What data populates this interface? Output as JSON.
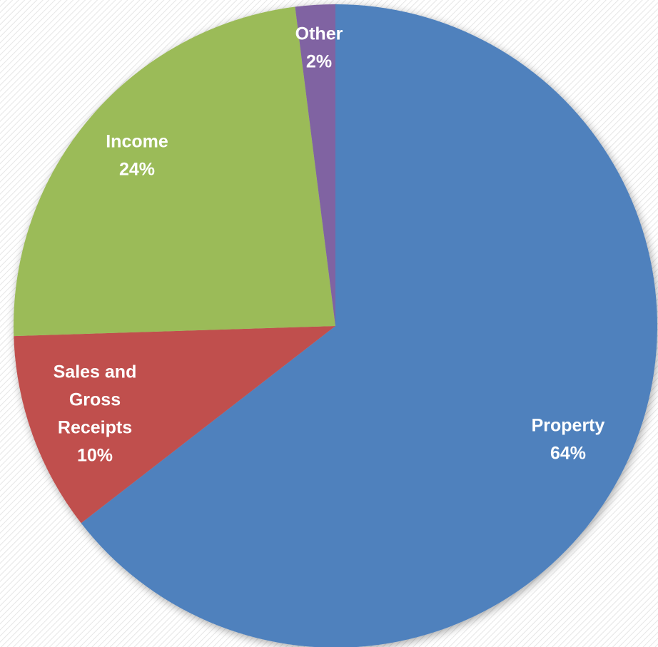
{
  "chart_data": {
    "type": "pie",
    "title": "",
    "start_angle_deg": 0,
    "direction": "clockwise",
    "slices": [
      {
        "label": [
          "Property"
        ],
        "percent_label": "64%",
        "value": 64.5,
        "color": "#4F81BD"
      },
      {
        "label": [
          "Sales and",
          "Gross",
          "Receipts"
        ],
        "percent_label": "10%",
        "value": 10.0,
        "color": "#C0504D"
      },
      {
        "label": [
          "Income"
        ],
        "percent_label": "24%",
        "value": 23.5,
        "color": "#9BBB59"
      },
      {
        "label": [
          "Other"
        ],
        "percent_label": "2%",
        "value": 2.0,
        "color": "#8064A2"
      }
    ]
  }
}
